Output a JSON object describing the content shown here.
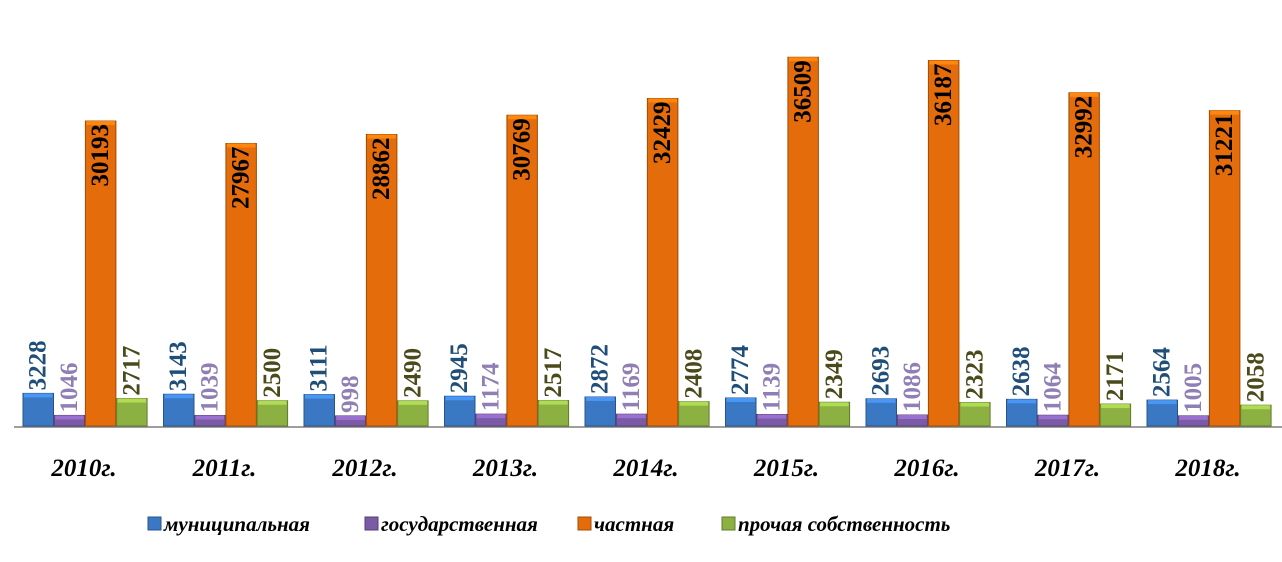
{
  "chart_data": {
    "type": "bar",
    "categories": [
      "2010г.",
      "2011г.",
      "2012г.",
      "2013г.",
      "2014г.",
      "2015г.",
      "2016г.",
      "2017г.",
      "2018г."
    ],
    "series": [
      {
        "name": "муниципальная",
        "color": "#3a78c3",
        "values": [
          3228,
          3143,
          3111,
          2945,
          2872,
          2774,
          2693,
          2638,
          2564
        ]
      },
      {
        "name": "государственная",
        "color": "#7b5aa6",
        "values": [
          1046,
          1039,
          998,
          1174,
          1169,
          1139,
          1086,
          1064,
          1005
        ]
      },
      {
        "name": "частная",
        "color": "#e46c0a",
        "values": [
          30193,
          27967,
          28862,
          30769,
          32429,
          36509,
          36187,
          32992,
          31221
        ]
      },
      {
        "name": "прочая собственность",
        "color": "#8db043",
        "values": [
          2717,
          2500,
          2490,
          2517,
          2408,
          2349,
          2323,
          2171,
          2058
        ]
      }
    ],
    "ylim": [
      0,
      40000
    ],
    "legend": "bottom"
  }
}
